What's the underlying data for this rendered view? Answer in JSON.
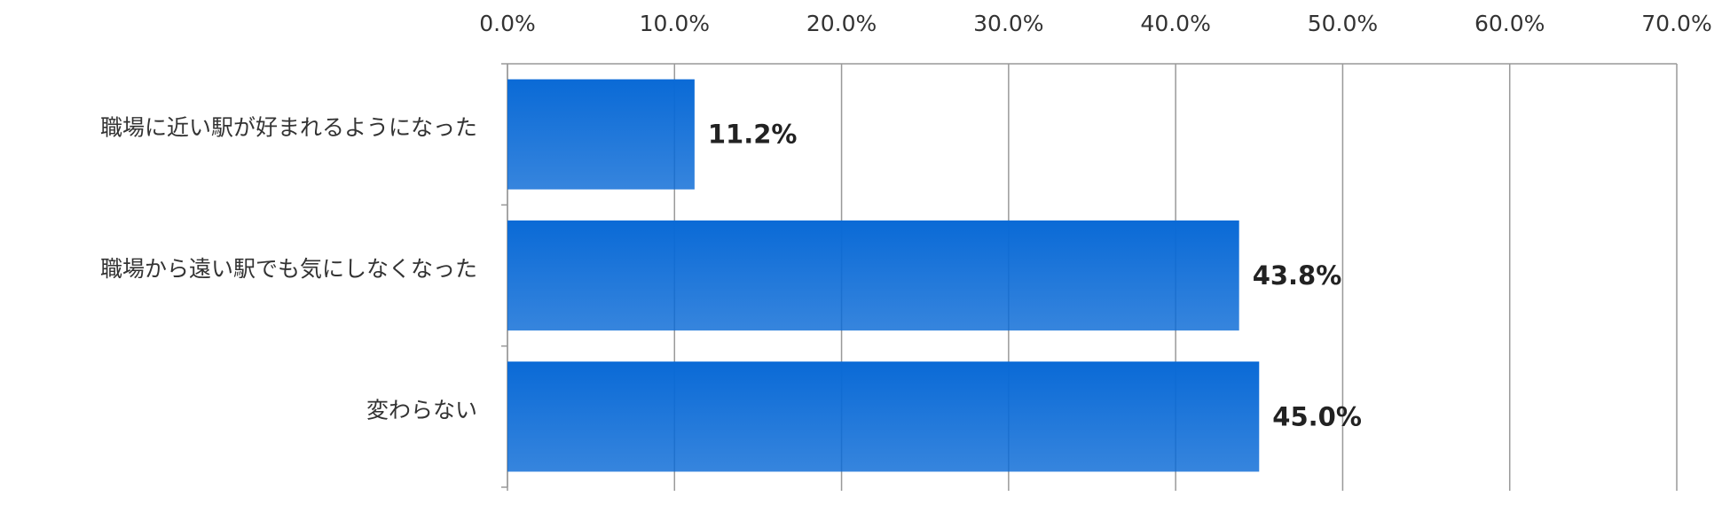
{
  "chart_data": {
    "type": "barh",
    "categories": [
      "職場に近い駅が好まれるようになった",
      "職場から遠い駅でも気にしなくなった",
      "変わらない"
    ],
    "values": [
      11.2,
      43.8,
      45.0
    ],
    "value_labels": [
      "11.2%",
      "43.8%",
      "45.0%"
    ],
    "color": "#0a6ad6",
    "xlim": [
      0,
      70
    ],
    "xticks": [
      {
        "value": 0,
        "label": "0.0%"
      },
      {
        "value": 10,
        "label": "10.0%"
      },
      {
        "value": 20,
        "label": "20.0%"
      },
      {
        "value": 30,
        "label": "30.0%"
      },
      {
        "value": 40,
        "label": "40.0%"
      },
      {
        "value": 50,
        "label": "50.0%"
      },
      {
        "value": 60,
        "label": "60.0%"
      },
      {
        "value": 70,
        "label": "70.0%"
      }
    ],
    "grid": true
  }
}
